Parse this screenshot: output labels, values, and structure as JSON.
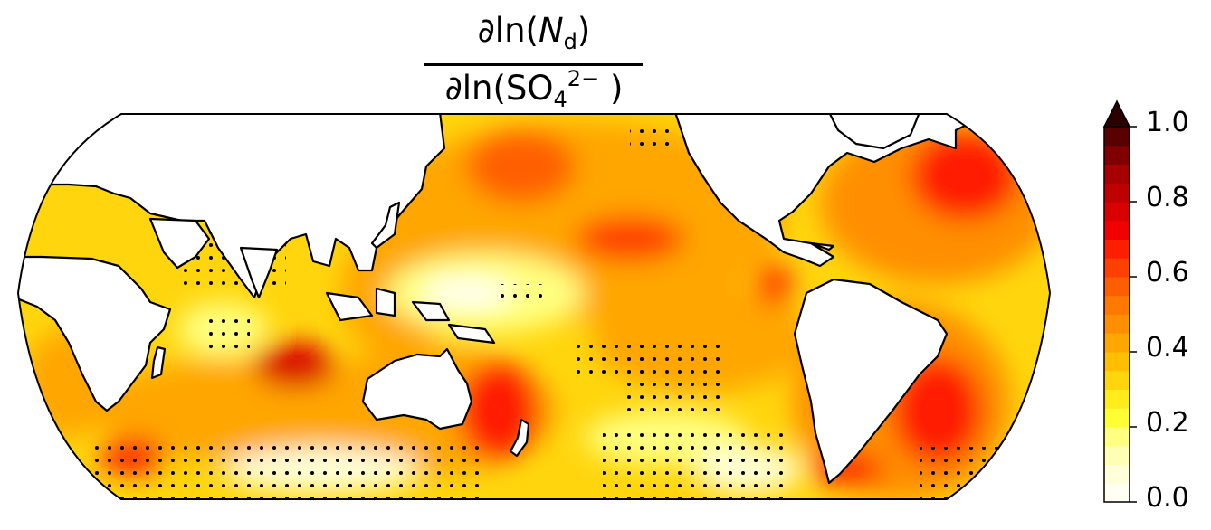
{
  "title": {
    "numerator": {
      "operator": "∂ln(",
      "var": "N",
      "subscript": "d",
      "close": ")"
    },
    "denominator": {
      "operator": "∂ln(SO",
      "subscript": "4",
      "superscript": "2−",
      "close": " )"
    }
  },
  "colorbar": {
    "min": 0.0,
    "max": 1.0,
    "extend": "max",
    "levels": 20,
    "tick_labels": [
      "1.0",
      "0.8",
      "0.6",
      "0.4",
      "0.2",
      "0.0"
    ],
    "colors": [
      "#fffff2",
      "#ffffd9",
      "#ffffb3",
      "#ffff80",
      "#ffff33",
      "#ffec1a",
      "#ffd60d",
      "#ffbf00",
      "#ffa600",
      "#ff8f00",
      "#ff7800",
      "#ff5e00",
      "#ff4000",
      "#ff1f00",
      "#f20000",
      "#d90000",
      "#bf0000",
      "#a60000",
      "#800000",
      "#590000"
    ],
    "extend_color": "#2b0000"
  },
  "map": {
    "projection": "Eckert IV, Pacific-centred",
    "land_color": "#ffffff",
    "coast_color": "#000000",
    "stipple_color": "#000000"
  }
}
